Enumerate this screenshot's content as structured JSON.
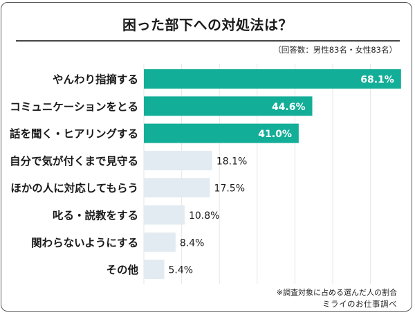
{
  "title": "困った部下への対処法は？",
  "respondents_note": "（回答数：男性83名・女性83名）",
  "footnote": "※調査対象に占める選んだ人の割合",
  "source": "ミライのお仕事調べ",
  "colors": {
    "highlight_bar": "#13ae98",
    "normal_bar": "#e3ebf2",
    "highlight_label": "#ffffff",
    "normal_label": "#1a1a1a",
    "gridline": "#e6e6e6"
  },
  "chart_data": {
    "type": "bar",
    "orientation": "horizontal",
    "title": "困った部下への対処法は？",
    "xlabel": "",
    "ylabel": "",
    "xlim": [
      0,
      70
    ],
    "grid": true,
    "unit": "%",
    "categories": [
      "やんわり指摘する",
      "コミュニケーションをとる",
      "話を聞く・ヒアリングする",
      "自分で気が付くまで見守る",
      "ほかの人に対応してもらう",
      "叱る・説教をする",
      "関わらないようにする",
      "その他"
    ],
    "values": [
      68.1,
      44.6,
      41.0,
      18.1,
      17.5,
      10.8,
      8.4,
      5.4
    ],
    "labels": [
      "68.1%",
      "44.6%",
      "41.0%",
      "18.1%",
      "17.5%",
      "10.8%",
      "8.4%",
      "5.4%"
    ],
    "highlighted": [
      true,
      true,
      true,
      false,
      false,
      false,
      false,
      false
    ]
  }
}
